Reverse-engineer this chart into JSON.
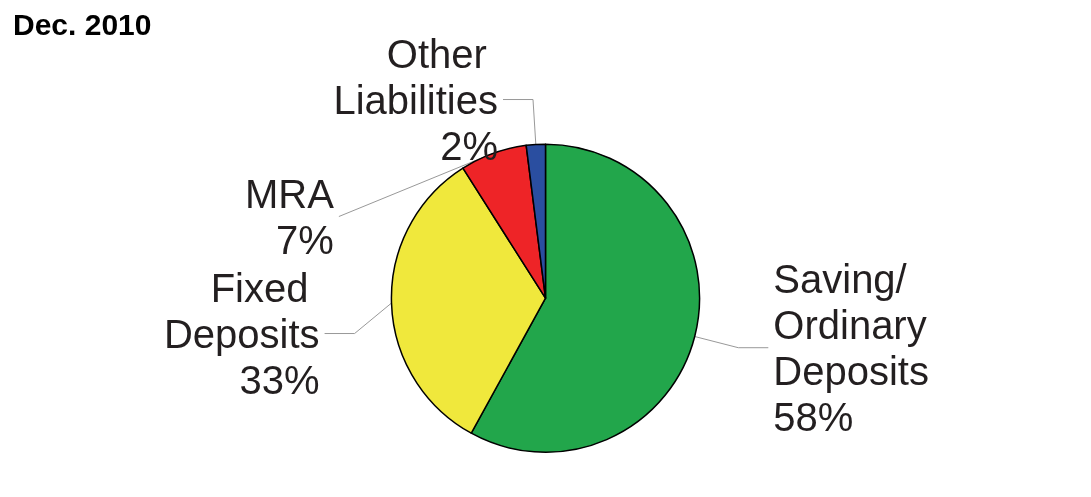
{
  "chart_data": {
    "type": "pie",
    "title": "Dec. 2010",
    "categories": [
      "Saving/ Ordinary Deposits",
      "Fixed Deposits",
      "MRA",
      "Other Liabilities"
    ],
    "values": [
      58,
      33,
      7,
      2
    ],
    "colors": [
      "#22a64b",
      "#f0e83c",
      "#ee2427",
      "#2a4ea0"
    ],
    "value_labels": [
      "58%",
      "33%",
      "7%",
      "2%"
    ],
    "legend": false
  }
}
